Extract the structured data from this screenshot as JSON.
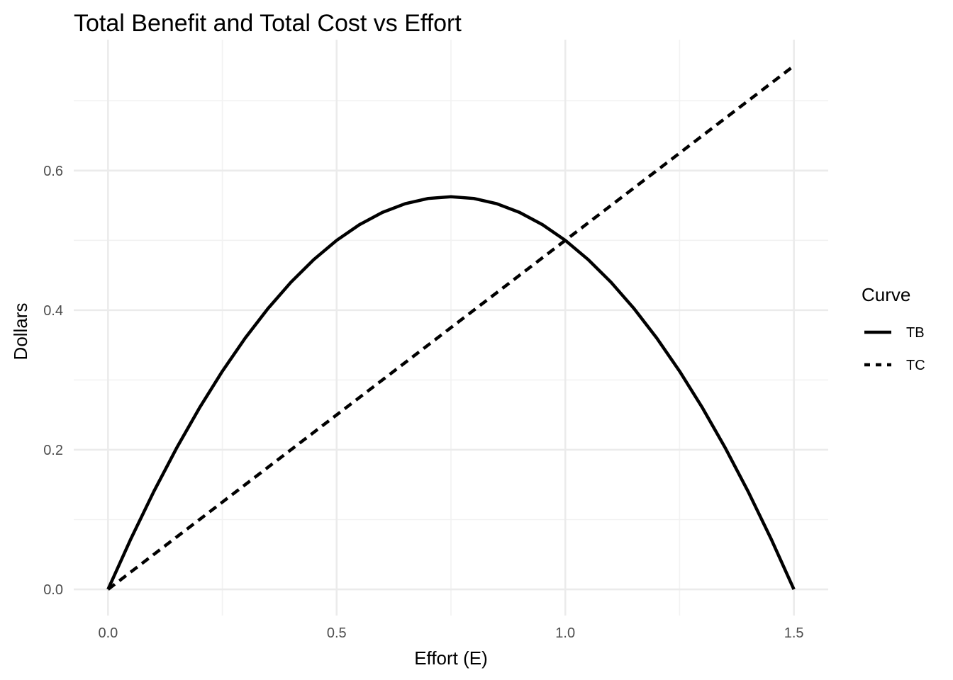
{
  "chart_data": {
    "type": "line",
    "title": "Total Benefit and Total Cost vs Effort",
    "xlabel": "Effort (E)",
    "ylabel": "Dollars",
    "xlim": [
      -0.075,
      1.575
    ],
    "ylim": [
      -0.0375,
      0.7875
    ],
    "x_ticks": [
      0.0,
      0.5,
      1.0,
      1.5
    ],
    "x_tick_labels": [
      "0.0",
      "0.5",
      "1.0",
      "1.5"
    ],
    "x_minor_ticks": [
      0.25,
      0.75,
      1.25
    ],
    "y_ticks": [
      0.0,
      0.2,
      0.4,
      0.6
    ],
    "y_tick_labels": [
      "0.0",
      "0.2",
      "0.4",
      "0.6"
    ],
    "y_minor_ticks": [
      0.1,
      0.3,
      0.5,
      0.7
    ],
    "grid": true,
    "legend": {
      "title": "Curve",
      "placement": "right",
      "entries": [
        {
          "label": "TB",
          "linetype": "solid"
        },
        {
          "label": "TC",
          "linetype": "dashed"
        }
      ]
    },
    "series": [
      {
        "name": "TB",
        "linetype": "solid",
        "color": "#000000",
        "x": [
          0.0,
          0.05,
          0.1,
          0.15,
          0.2,
          0.25,
          0.3,
          0.35,
          0.4,
          0.45,
          0.5,
          0.55,
          0.6,
          0.65,
          0.7,
          0.75,
          0.8,
          0.85,
          0.9,
          0.95,
          1.0,
          1.05,
          1.1,
          1.15,
          1.2,
          1.25,
          1.3,
          1.35,
          1.4,
          1.45,
          1.5
        ],
        "y": [
          0.0,
          0.0725,
          0.14,
          0.2025,
          0.26,
          0.3125,
          0.36,
          0.4025,
          0.44,
          0.4725,
          0.5,
          0.5225,
          0.54,
          0.5525,
          0.56,
          0.5625,
          0.56,
          0.5525,
          0.54,
          0.5225,
          0.5,
          0.4725,
          0.44,
          0.4025,
          0.36,
          0.3125,
          0.26,
          0.2025,
          0.14,
          0.0725,
          0.0
        ]
      },
      {
        "name": "TC",
        "linetype": "dashed",
        "color": "#000000",
        "x": [
          0.0,
          0.25,
          0.5,
          0.75,
          1.0,
          1.25,
          1.5
        ],
        "y": [
          0.0,
          0.125,
          0.25,
          0.375,
          0.5,
          0.625,
          0.75
        ]
      }
    ]
  },
  "colors": {
    "major_grid": "#ebebeb",
    "minor_grid": "#f2f2f2",
    "tick_text": "#4d4d4d",
    "line": "#000000"
  }
}
